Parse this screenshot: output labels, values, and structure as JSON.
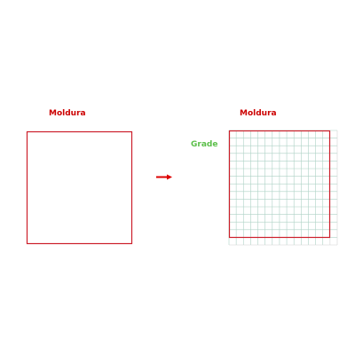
{
  "labels": {
    "left_frame": "Moldura",
    "right_frame": "Moldura",
    "grid": "Grade"
  },
  "colors": {
    "frame": "#cc1f2a",
    "frame_label": "#cc0000",
    "grid_label": "#5cbf4a",
    "grid_line": "#aed2c6",
    "grid_outer_line": "#d2d2d2",
    "arrow": "#dd0000"
  },
  "icons": {
    "transform": "arrow-right-icon"
  },
  "grid": {
    "cells_per_side": 15
  }
}
